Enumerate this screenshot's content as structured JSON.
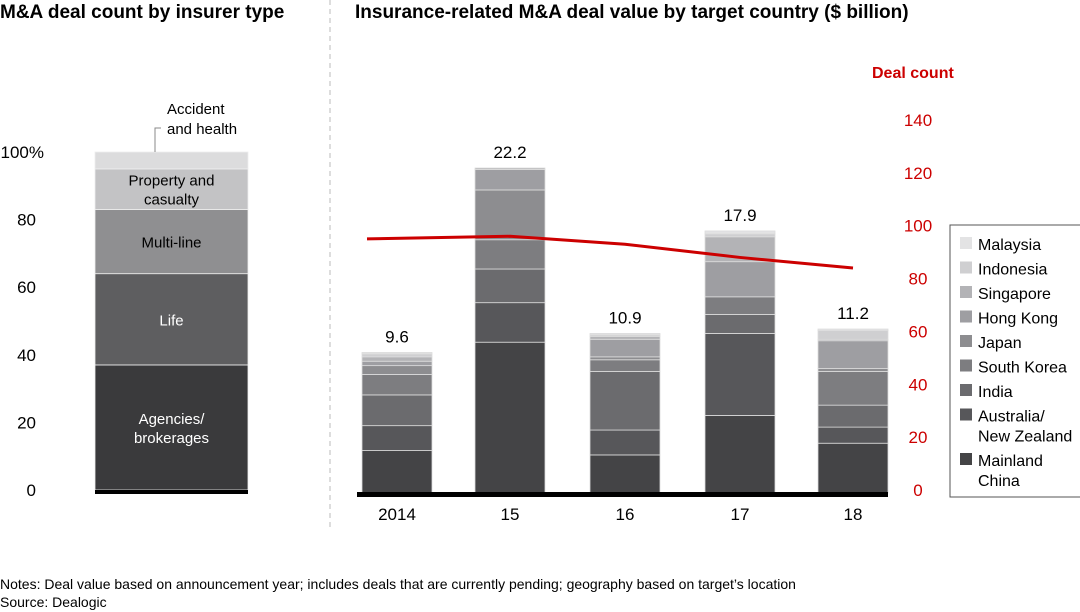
{
  "chart_data": [
    {
      "type": "bar",
      "stacked": true,
      "title": "M&A deal count by insurer type",
      "ylim": [
        0,
        100
      ],
      "yticks": [
        "0",
        "20",
        "40",
        "60",
        "80",
        "100%"
      ],
      "series": [
        {
          "name": "Agencies/ brokerages",
          "values": [
            37
          ],
          "color": "#3a3a3c",
          "label_color": "#ffffff"
        },
        {
          "name": "Life",
          "values": [
            27
          ],
          "color": "#5e5e60",
          "label_color": "#ffffff"
        },
        {
          "name": "Multi-line",
          "values": [
            19
          ],
          "color": "#8f8f91",
          "label_color": "#000000"
        },
        {
          "name": "Property and casualty",
          "values": [
            12
          ],
          "color": "#c3c3c5",
          "label_color": "#000000"
        },
        {
          "name": "Accident and health",
          "values": [
            5
          ],
          "color": "#dcdcdd",
          "label_color": "#000000"
        }
      ]
    },
    {
      "type": "bar",
      "stacked": true,
      "title": "Insurance-related M&A deal value by target country ($ billion)",
      "categories": [
        "2014",
        "15",
        "16",
        "17",
        "18"
      ],
      "totals": [
        "9.6",
        "22.2",
        "10.9",
        "17.9",
        "11.2"
      ],
      "legend_position": "right",
      "series": [
        {
          "name": "Mainland China",
          "values": [
            2.9,
            10.3,
            2.6,
            5.3,
            3.4
          ],
          "color": "#444446"
        },
        {
          "name": "Australia/ New Zealand",
          "values": [
            1.7,
            2.7,
            1.7,
            5.6,
            1.1
          ],
          "color": "#57575a"
        },
        {
          "name": "India",
          "values": [
            2.1,
            2.3,
            4.0,
            1.3,
            1.5
          ],
          "color": "#6b6b6e"
        },
        {
          "name": "South Korea",
          "values": [
            1.4,
            2.0,
            0.8,
            1.2,
            2.3
          ],
          "color": "#7d7d80"
        },
        {
          "name": "Japan",
          "values": [
            0.6,
            3.4,
            0.2,
            0.0,
            0.2
          ],
          "color": "#8d8d90"
        },
        {
          "name": "Hong Kong",
          "values": [
            0.3,
            1.4,
            1.2,
            2.4,
            1.9
          ],
          "color": "#9e9ea2"
        },
        {
          "name": "Singapore",
          "values": [
            0.3,
            0.1,
            0.2,
            1.7,
            0.1
          ],
          "color": "#b3b3b6"
        },
        {
          "name": "Indonesia",
          "values": [
            0.2,
            0.0,
            0.1,
            0.2,
            0.6
          ],
          "color": "#cfcfd1"
        },
        {
          "name": "Malaysia",
          "values": [
            0.1,
            0.0,
            0.1,
            0.2,
            0.1
          ],
          "color": "#e3e3e4"
        }
      ],
      "line": {
        "name": "Deal count",
        "values": [
          95,
          96,
          93,
          88,
          84
        ],
        "color": "#cc0000",
        "ylim": [
          0,
          140
        ],
        "yticks": [
          "0",
          "20",
          "40",
          "60",
          "80",
          "100",
          "120",
          "140"
        ]
      }
    }
  ],
  "notes": "Notes: Deal value based on announcement year; includes deals that are currently pending; geography based on target’s location",
  "source": "Source: Dealogic"
}
